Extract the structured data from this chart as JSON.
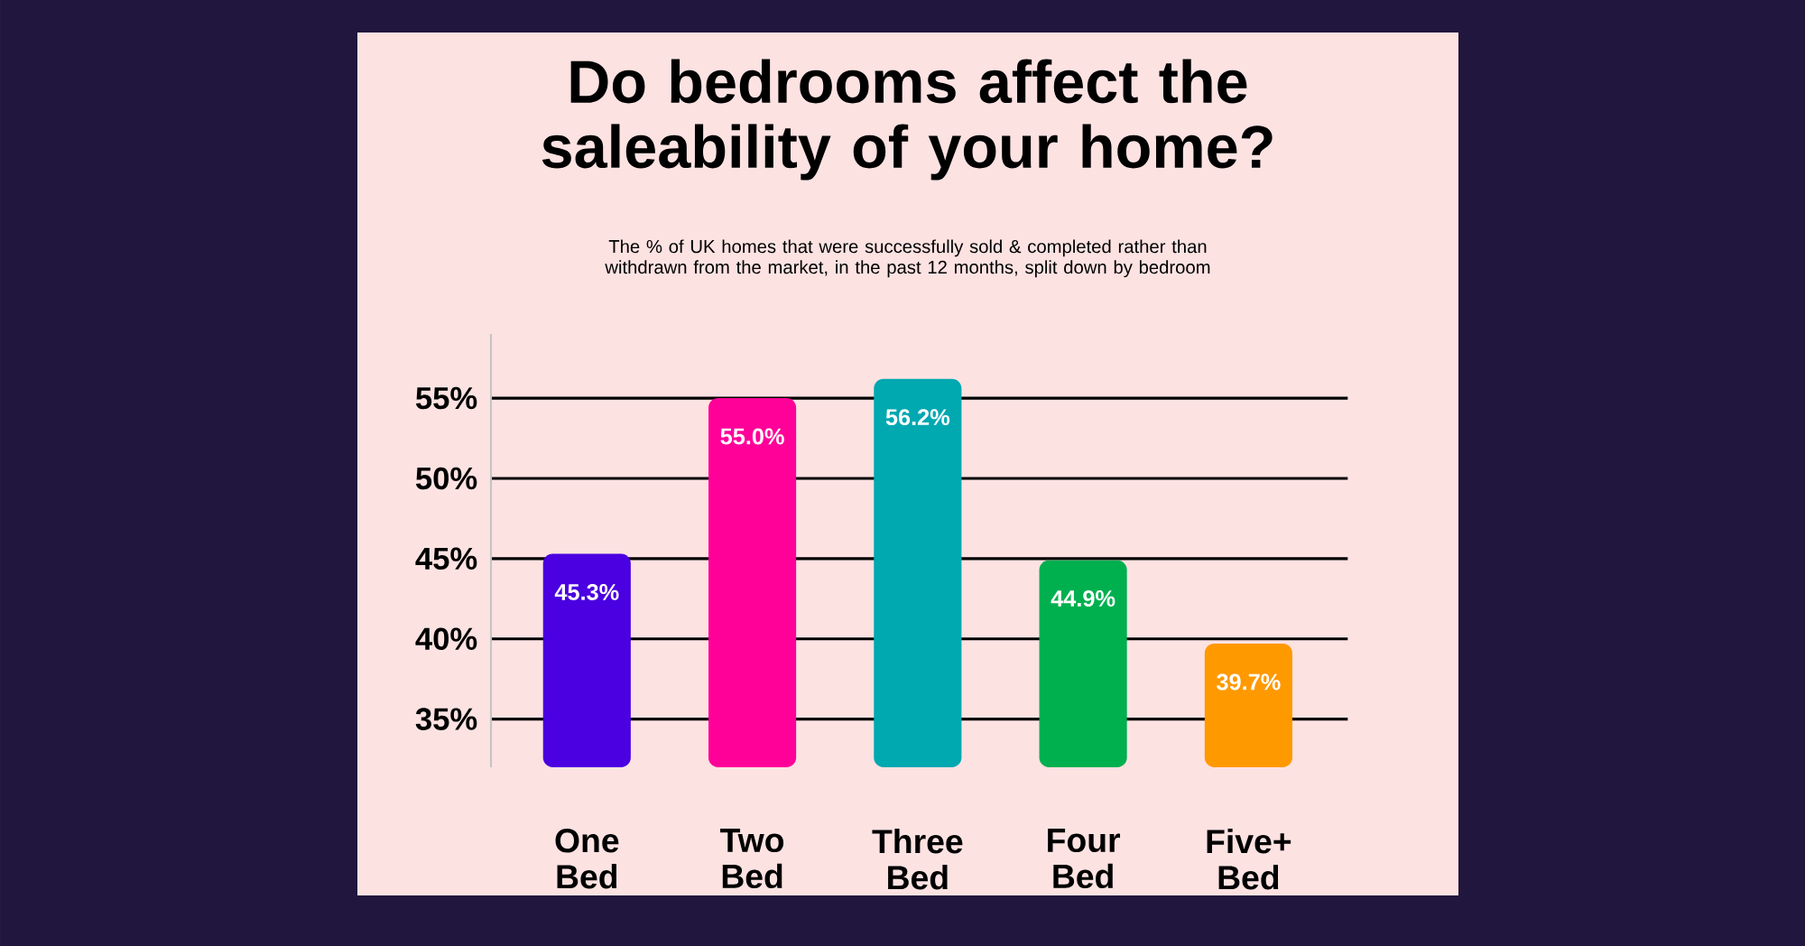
{
  "chart_data": {
    "type": "bar",
    "title": "Do bedrooms affect the saleability of your home?",
    "subtitle": "The % of UK homes that were successfully sold & completed rather than withdrawn from the market, in the past 12 months, split down by bedroom",
    "categories": [
      "One Bed",
      "Two Bed",
      "Three Bed",
      "Four Bed",
      "Five+ Bed"
    ],
    "values": [
      45.3,
      55.0,
      56.2,
      44.9,
      39.7
    ],
    "value_labels": [
      "45.3%",
      "55.0%",
      "56.2%",
      "44.9%",
      "39.7%"
    ],
    "colors": [
      "#4a00e0",
      "#ff0099",
      "#00a8b0",
      "#00b04f",
      "#ff9900"
    ],
    "ylim": [
      32,
      59
    ],
    "yticks": [
      {
        "value": 35,
        "label": "35%"
      },
      {
        "value": 40,
        "label": "40%"
      },
      {
        "value": 45,
        "label": "45%"
      },
      {
        "value": 50,
        "label": "50%"
      },
      {
        "value": 55,
        "label": "55%"
      }
    ],
    "grid": "y"
  }
}
